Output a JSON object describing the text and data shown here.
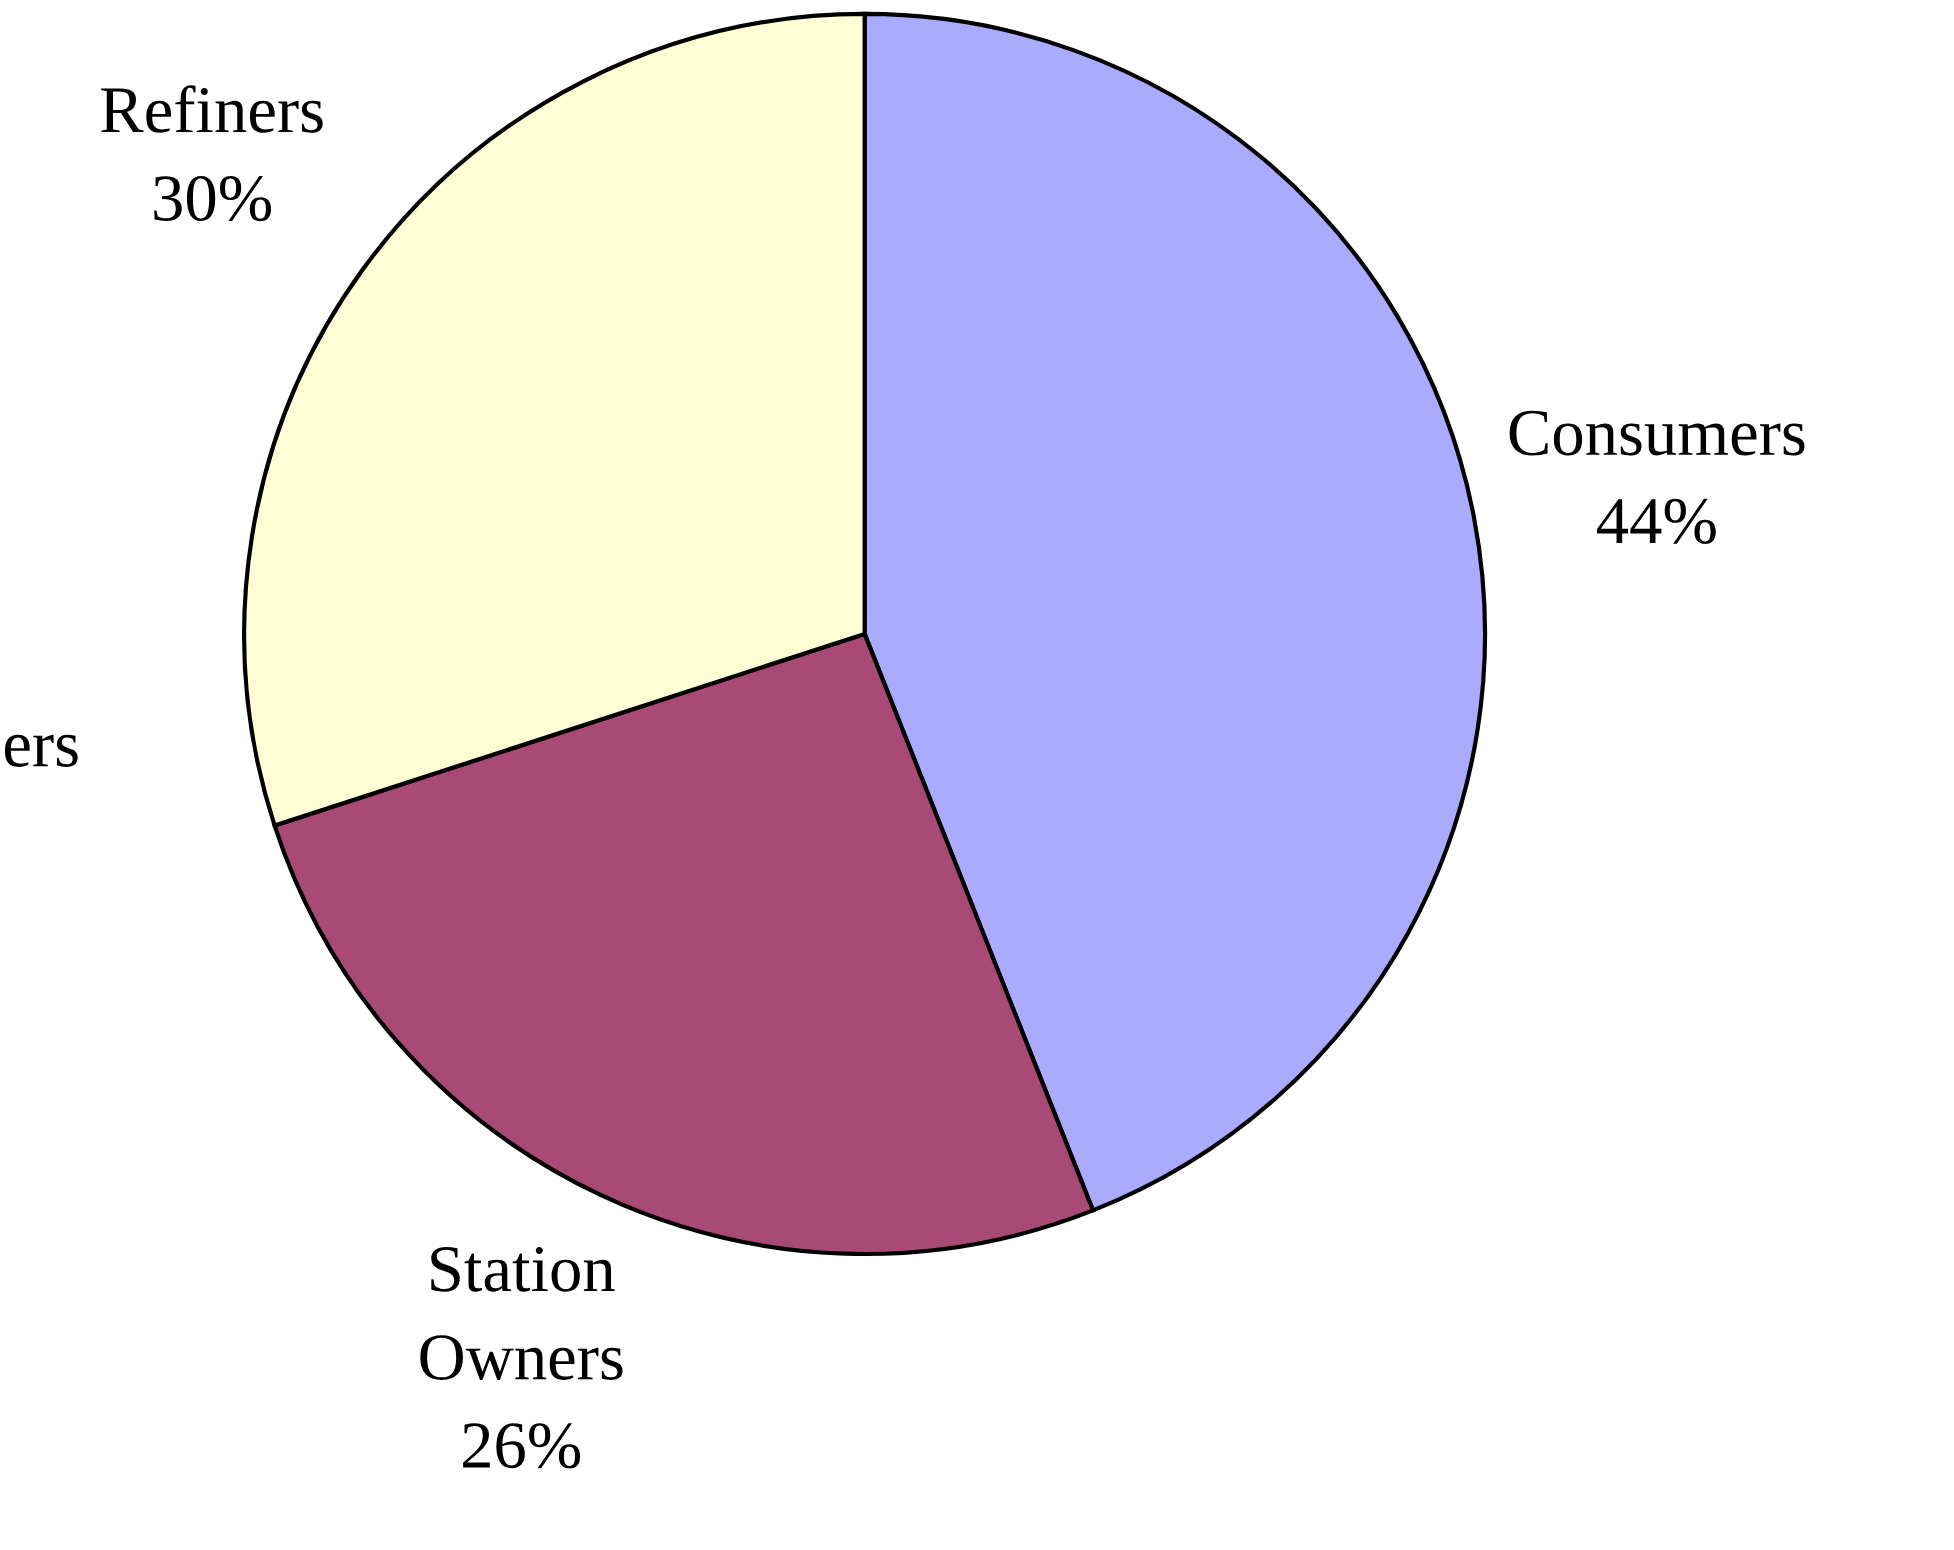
{
  "chart_data": {
    "type": "pie",
    "categories": [
      "Consumers",
      "Station Owners",
      "Refiners"
    ],
    "values": [
      44,
      26,
      30
    ],
    "value_labels": [
      "44%",
      "26%",
      "30%"
    ],
    "colors": [
      "#aaaaff",
      "#a94a76",
      "#ffffd5"
    ],
    "annotations": [
      "ers"
    ],
    "legend": false
  }
}
